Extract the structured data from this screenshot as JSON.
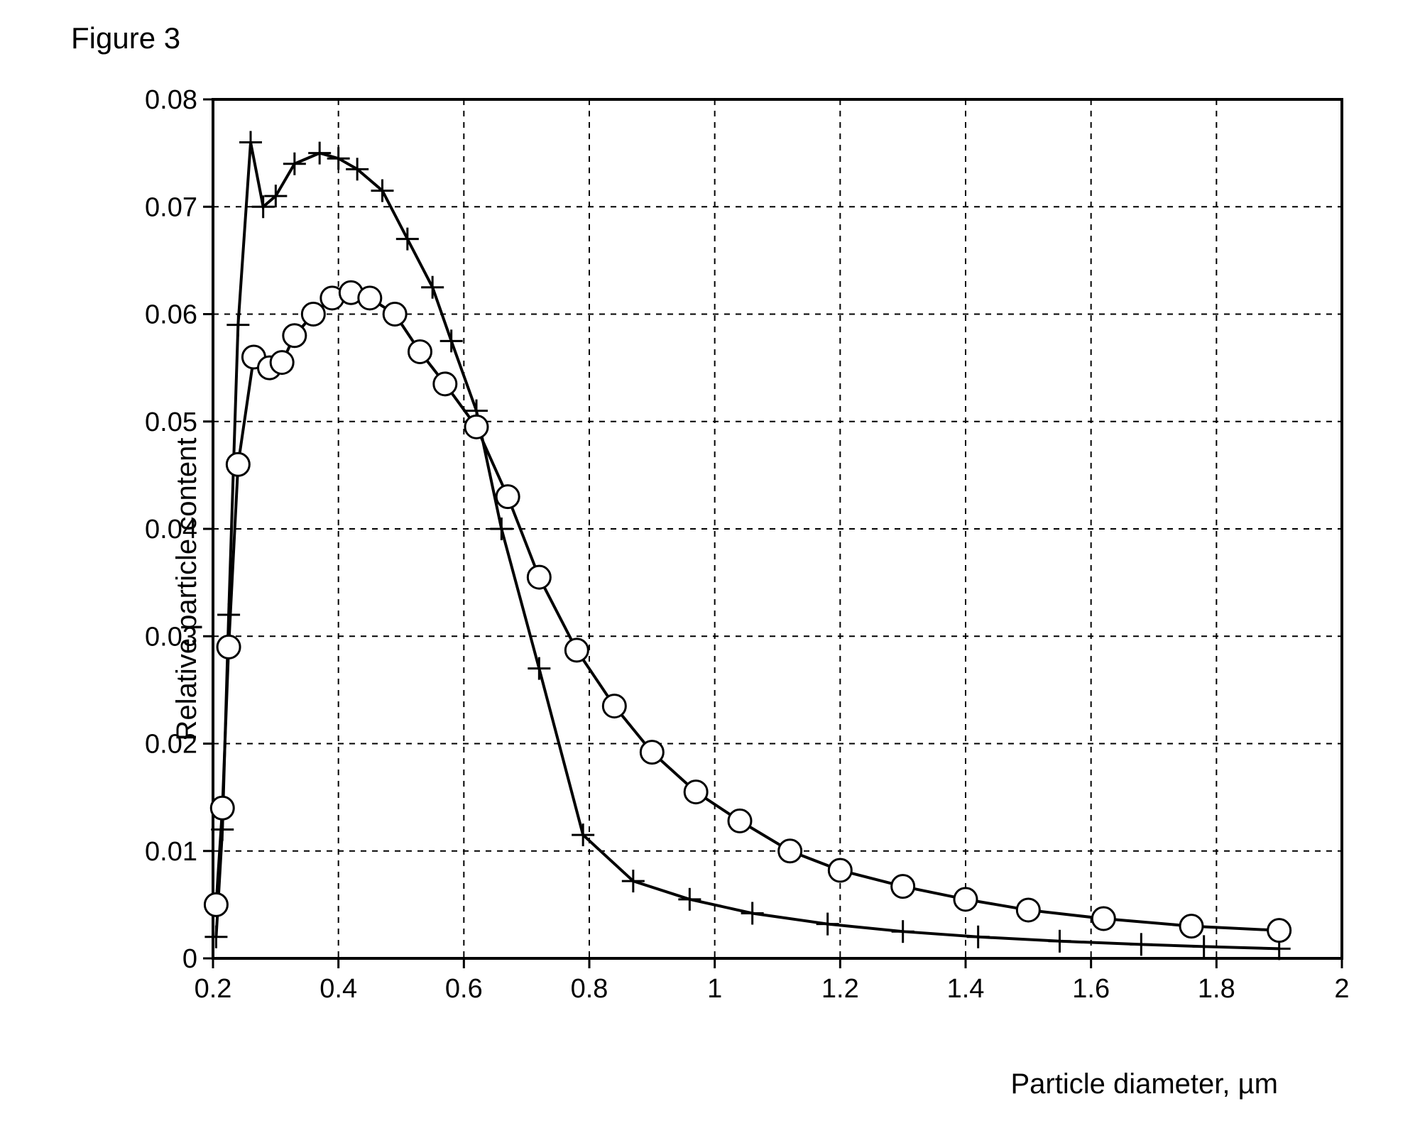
{
  "figure_title": "Figure 3",
  "chart": {
    "type": "line",
    "xlabel": "Particle diameter, µm",
    "ylabel": "Relative particle content",
    "xlim": [
      0.2,
      2.0
    ],
    "ylim": [
      0.0,
      0.08
    ],
    "xticks": [
      0.2,
      0.4,
      0.6,
      0.8,
      1.0,
      1.2,
      1.4,
      1.6,
      1.8,
      2.0
    ],
    "xtick_labels": [
      "0.2",
      "0.4",
      "0.6",
      "0.8",
      "1",
      "1.2",
      "1.4",
      "1.6",
      "1.8",
      "2"
    ],
    "yticks": [
      0,
      0.01,
      0.02,
      0.03,
      0.04,
      0.05,
      0.06,
      0.07,
      0.08
    ],
    "ytick_labels": [
      "0",
      "0.01",
      "0.02",
      "0.03",
      "0.04",
      "0.05",
      "0.06",
      "0.07",
      "0.08"
    ],
    "background_color": "#ffffff",
    "axis_color": "#000000",
    "grid_color": "#000000",
    "grid_dash": "8,8",
    "tick_fontsize": 38,
    "label_fontsize": 40,
    "line_width": 4,
    "marker_size": 16,
    "series": [
      {
        "name": "series-plus",
        "marker": "plus",
        "color": "#000000",
        "x": [
          0.205,
          0.215,
          0.225,
          0.24,
          0.26,
          0.28,
          0.3,
          0.33,
          0.37,
          0.4,
          0.43,
          0.47,
          0.51,
          0.55,
          0.58,
          0.62,
          0.66,
          0.72,
          0.79,
          0.87,
          0.96,
          1.06,
          1.18,
          1.3,
          1.42,
          1.55,
          1.68,
          1.78,
          1.9
        ],
        "y": [
          0.002,
          0.012,
          0.032,
          0.059,
          0.076,
          0.07,
          0.071,
          0.074,
          0.075,
          0.0745,
          0.0735,
          0.0715,
          0.067,
          0.0625,
          0.0575,
          0.051,
          0.04,
          0.027,
          0.0115,
          0.0072,
          0.0055,
          0.0042,
          0.0032,
          0.0025,
          0.002,
          0.0016,
          0.0013,
          0.0011,
          0.0009
        ]
      },
      {
        "name": "series-circle",
        "marker": "circle",
        "color": "#000000",
        "x": [
          0.205,
          0.215,
          0.225,
          0.24,
          0.265,
          0.29,
          0.31,
          0.33,
          0.36,
          0.39,
          0.42,
          0.45,
          0.49,
          0.53,
          0.57,
          0.62,
          0.67,
          0.72,
          0.78,
          0.84,
          0.9,
          0.97,
          1.04,
          1.12,
          1.2,
          1.3,
          1.4,
          1.5,
          1.62,
          1.76,
          1.9
        ],
        "y": [
          0.005,
          0.014,
          0.029,
          0.046,
          0.056,
          0.055,
          0.0555,
          0.058,
          0.06,
          0.0615,
          0.062,
          0.0615,
          0.06,
          0.0565,
          0.0535,
          0.0495,
          0.043,
          0.0355,
          0.0287,
          0.0235,
          0.0192,
          0.0155,
          0.0128,
          0.01,
          0.0082,
          0.0067,
          0.0055,
          0.0045,
          0.0037,
          0.003,
          0.0026
        ]
      }
    ]
  }
}
